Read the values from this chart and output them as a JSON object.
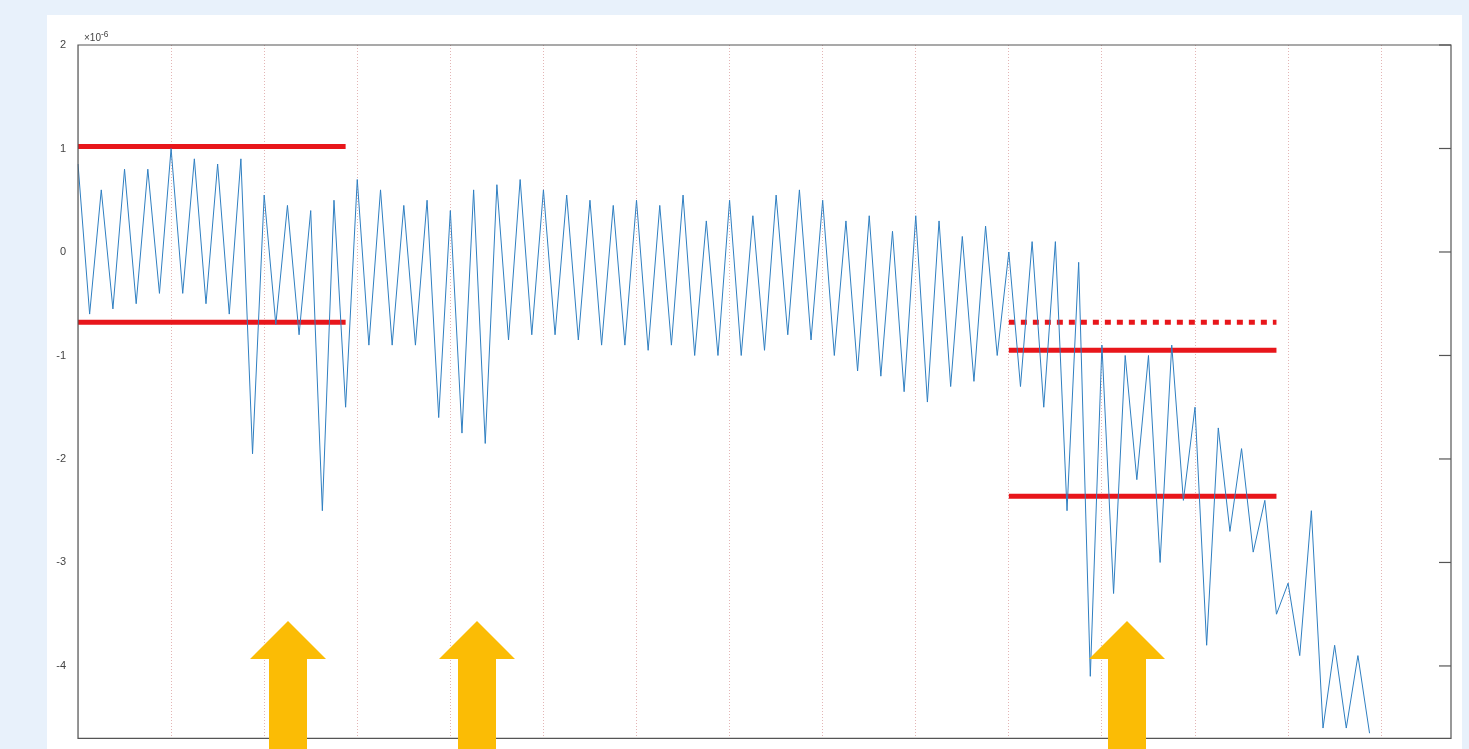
{
  "chart_data": {
    "type": "line",
    "categories": [
      null,
      null,
      null,
      null,
      null,
      null,
      null,
      null,
      null,
      null,
      null,
      null,
      null,
      null,
      null,
      null,
      null,
      null,
      null,
      null,
      null,
      null,
      null,
      null,
      null,
      null,
      null,
      null,
      null,
      null,
      null,
      null,
      null,
      null,
      null,
      null,
      null,
      null,
      null,
      null,
      null,
      null,
      null,
      null,
      null,
      null,
      null,
      null,
      null,
      null,
      null,
      null,
      null,
      null,
      null,
      null,
      null,
      null,
      null,
      null,
      null,
      null,
      null,
      null,
      null,
      null,
      null,
      null,
      null,
      null,
      null,
      null,
      null,
      null,
      null,
      null,
      null,
      null,
      null,
      null,
      null,
      null,
      null,
      null,
      null,
      null,
      null,
      null,
      null,
      null,
      null,
      null,
      null,
      null,
      null,
      null,
      null,
      null,
      null,
      null,
      null,
      null,
      null,
      null,
      null,
      null,
      null,
      null,
      null,
      null,
      null,
      null,
      null,
      null,
      null,
      null,
      null,
      null,
      null
    ],
    "series": [
      {
        "color": "#2f7fc1",
        "values": [
          0.85,
          -0.6,
          0.6,
          -0.55,
          0.8,
          -0.5,
          0.8,
          -0.4,
          1.0,
          -0.4,
          0.9,
          -0.5,
          0.85,
          -0.6,
          0.9,
          -1.95,
          0.55,
          -0.7,
          0.45,
          -0.8,
          0.4,
          -2.5,
          0.5,
          -1.5,
          0.7,
          -0.9,
          0.6,
          -0.9,
          0.45,
          -0.9,
          0.5,
          -1.6,
          0.4,
          -1.75,
          0.6,
          -1.85,
          0.65,
          -0.85,
          0.7,
          -0.8,
          0.6,
          -0.8,
          0.55,
          -0.85,
          0.5,
          -0.9,
          0.45,
          -0.9,
          0.5,
          -0.95,
          0.45,
          -0.9,
          0.55,
          -1.0,
          0.3,
          -1.0,
          0.5,
          -1.0,
          0.35,
          -0.95,
          0.55,
          -0.8,
          0.6,
          -0.85,
          0.5,
          -1.0,
          0.3,
          -1.15,
          0.35,
          -1.2,
          0.2,
          -1.35,
          0.35,
          -1.45,
          0.3,
          -1.3,
          0.15,
          -1.25,
          0.25,
          -1.0,
          0.0,
          -1.3,
          0.1,
          -1.5,
          0.1,
          -2.5,
          -0.1,
          -4.1,
          -0.9,
          -3.3,
          -1.0,
          -2.2,
          -1.0,
          -3.0,
          -0.9,
          -2.4,
          -1.5,
          -3.8,
          -1.7,
          -2.7,
          -1.9,
          -2.9,
          -2.4,
          -3.5,
          -3.2,
          -3.9,
          -2.5,
          -4.6,
          -3.8,
          -4.6,
          -3.9,
          -4.65,
          null,
          null,
          null,
          null,
          null,
          null,
          null
        ]
      },
      {
        "type": "line",
        "color": "#e8161b",
        "line_style": "solid",
        "values": [
          1.02,
          1.02,
          1.02,
          1.02,
          1.02,
          1.02,
          1.02,
          1.02,
          1.02,
          1.02,
          1.02,
          1.02,
          1.02,
          1.02,
          1.02,
          1.02,
          1.02,
          1.02,
          1.02,
          1.02,
          1.02,
          1.02,
          1.02,
          1.02,
          null,
          null,
          null,
          null,
          null,
          null,
          null,
          null,
          null,
          null,
          null,
          null,
          null,
          null,
          null,
          null,
          null,
          null,
          null,
          null,
          null,
          null,
          null,
          null,
          null,
          null,
          null,
          null,
          null,
          null,
          null,
          null,
          null,
          null,
          null,
          null,
          null,
          null,
          null,
          null,
          null,
          null,
          null,
          null,
          null,
          null,
          null,
          null,
          null,
          null,
          null,
          null,
          null,
          null,
          null,
          null,
          -0.95,
          -0.95,
          -0.95,
          -0.95,
          -0.95,
          -0.95,
          -0.95,
          -0.95,
          -0.95,
          -0.95,
          -0.95,
          -0.95,
          -0.95,
          -0.95,
          -0.95,
          -0.95,
          -0.95,
          -0.95,
          -0.95,
          -0.95,
          -0.95,
          -0.95,
          -0.95,
          -0.95,
          null,
          null,
          null,
          null,
          null,
          null,
          null,
          null,
          null,
          null,
          null,
          null,
          null,
          null,
          null
        ]
      },
      {
        "type": "line",
        "color": "#e8161b",
        "line_style": "solid",
        "values": [
          -0.68,
          -0.68,
          -0.68,
          -0.68,
          -0.68,
          -0.68,
          -0.68,
          -0.68,
          -0.68,
          -0.68,
          -0.68,
          -0.68,
          -0.68,
          -0.68,
          -0.68,
          -0.68,
          -0.68,
          -0.68,
          -0.68,
          -0.68,
          -0.68,
          -0.68,
          -0.68,
          -0.68,
          null,
          null,
          null,
          null,
          null,
          null,
          null,
          null,
          null,
          null,
          null,
          null,
          null,
          null,
          null,
          null,
          null,
          null,
          null,
          null,
          null,
          null,
          null,
          null,
          null,
          null,
          null,
          null,
          null,
          null,
          null,
          null,
          null,
          null,
          null,
          null,
          null,
          null,
          null,
          null,
          null,
          null,
          null,
          null,
          null,
          null,
          null,
          null,
          null,
          null,
          null,
          null,
          null,
          null,
          null,
          null,
          -2.36,
          -2.36,
          -2.36,
          -2.36,
          -2.36,
          -2.36,
          -2.36,
          -2.36,
          -2.36,
          -2.36,
          -2.36,
          -2.36,
          -2.36,
          -2.36,
          -2.36,
          -2.36,
          -2.36,
          -2.36,
          -2.36,
          -2.36,
          -2.36,
          -2.36,
          -2.36,
          -2.36,
          null,
          null,
          null,
          null,
          null,
          null,
          null,
          null,
          null,
          null,
          null,
          null,
          null,
          null,
          null
        ]
      },
      {
        "type": "line",
        "color": "#e8161b",
        "line_style": "dotted",
        "values": [
          null,
          null,
          null,
          null,
          null,
          null,
          null,
          null,
          null,
          null,
          null,
          null,
          null,
          null,
          null,
          null,
          null,
          null,
          null,
          null,
          null,
          null,
          null,
          null,
          null,
          null,
          null,
          null,
          null,
          null,
          null,
          null,
          null,
          null,
          null,
          null,
          null,
          null,
          null,
          null,
          null,
          null,
          null,
          null,
          null,
          null,
          null,
          null,
          null,
          null,
          null,
          null,
          null,
          null,
          null,
          null,
          null,
          null,
          null,
          null,
          null,
          null,
          null,
          null,
          null,
          null,
          null,
          null,
          null,
          null,
          null,
          null,
          null,
          null,
          null,
          null,
          null,
          null,
          null,
          null,
          -0.68,
          -0.68,
          -0.68,
          -0.68,
          -0.68,
          -0.68,
          -0.68,
          -0.68,
          -0.68,
          -0.68,
          -0.68,
          -0.68,
          -0.68,
          -0.68,
          -0.68,
          -0.68,
          -0.68,
          -0.68,
          -0.68,
          -0.68,
          -0.68,
          -0.68,
          -0.68,
          -0.68,
          null,
          null,
          null,
          null,
          null,
          null,
          null,
          null,
          null,
          null,
          null,
          null,
          null,
          null,
          null
        ]
      }
    ],
    "ylim": [
      -4.7,
      2
    ],
    "yticks": [
      -4,
      -3,
      -2,
      -1,
      0,
      1,
      2
    ],
    "annotations": [
      "×10$^{-6}$"
    ],
    "grid": "x",
    "legend": false,
    "tick_labels": "y",
    "marker": "none"
  }
}
